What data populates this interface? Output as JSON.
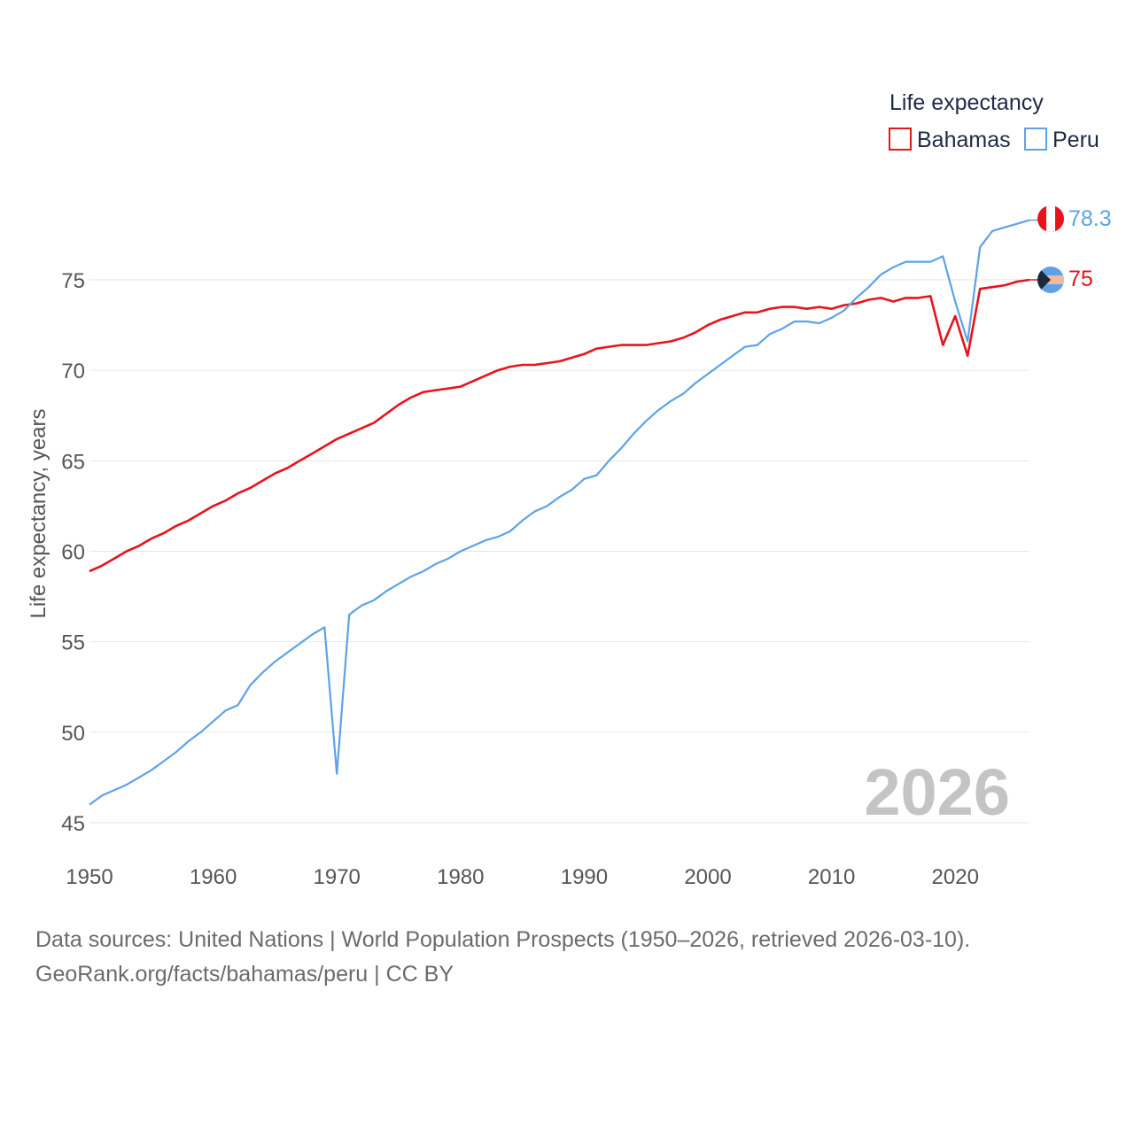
{
  "chart_data": {
    "type": "line",
    "title": "",
    "xlabel": "",
    "ylabel": "Life expectancy, years",
    "legend_title": "Life expectancy",
    "legend_position": "top-right",
    "year_label": "2026",
    "xlim": [
      1950,
      2026
    ],
    "ylim": [
      45,
      80
    ],
    "xticks": [
      1950,
      1960,
      1970,
      1980,
      1990,
      2000,
      2010,
      2020
    ],
    "yticks": [
      45,
      50,
      55,
      60,
      65,
      70,
      75
    ],
    "grid": true,
    "x": [
      1950,
      1951,
      1952,
      1953,
      1954,
      1955,
      1956,
      1957,
      1958,
      1959,
      1960,
      1961,
      1962,
      1963,
      1964,
      1965,
      1966,
      1967,
      1968,
      1969,
      1970,
      1971,
      1972,
      1973,
      1974,
      1975,
      1976,
      1977,
      1978,
      1979,
      1980,
      1981,
      1982,
      1983,
      1984,
      1985,
      1986,
      1987,
      1988,
      1989,
      1990,
      1991,
      1992,
      1993,
      1994,
      1995,
      1996,
      1997,
      1998,
      1999,
      2000,
      2001,
      2002,
      2003,
      2004,
      2005,
      2006,
      2007,
      2008,
      2009,
      2010,
      2011,
      2012,
      2013,
      2014,
      2015,
      2016,
      2017,
      2018,
      2019,
      2020,
      2021,
      2022,
      2023,
      2024,
      2025,
      2026
    ],
    "series": [
      {
        "name": "Bahamas",
        "color": "#e8131b",
        "end_label": "75",
        "values": [
          58.9,
          59.2,
          59.6,
          60.0,
          60.3,
          60.7,
          61.0,
          61.4,
          61.7,
          62.1,
          62.5,
          62.8,
          63.2,
          63.5,
          63.9,
          64.3,
          64.6,
          65.0,
          65.4,
          65.8,
          66.2,
          66.5,
          66.8,
          67.1,
          67.6,
          68.1,
          68.5,
          68.8,
          68.9,
          69.0,
          69.1,
          69.4,
          69.7,
          70.0,
          70.2,
          70.3,
          70.3,
          70.4,
          70.5,
          70.7,
          70.9,
          71.2,
          71.3,
          71.4,
          71.4,
          71.4,
          71.5,
          71.6,
          71.8,
          72.1,
          72.5,
          72.8,
          73.0,
          73.2,
          73.2,
          73.4,
          73.5,
          73.5,
          73.4,
          73.5,
          73.4,
          73.6,
          73.7,
          73.9,
          74.0,
          73.8,
          74.0,
          74.0,
          74.1,
          71.4,
          73.0,
          70.8,
          74.5,
          74.6,
          74.7,
          74.9,
          75.0
        ]
      },
      {
        "name": "Peru",
        "color": "#5da2e8",
        "end_label": "78.3",
        "values": [
          46.0,
          46.5,
          46.8,
          47.1,
          47.5,
          47.9,
          48.4,
          48.9,
          49.5,
          50.0,
          50.6,
          51.2,
          51.5,
          52.6,
          53.3,
          53.9,
          54.4,
          54.9,
          55.4,
          55.8,
          47.7,
          56.5,
          57.0,
          57.3,
          57.8,
          58.2,
          58.6,
          58.9,
          59.3,
          59.6,
          60.0,
          60.3,
          60.6,
          60.8,
          61.1,
          61.7,
          62.2,
          62.5,
          63.0,
          63.4,
          64.0,
          64.2,
          65.0,
          65.7,
          66.5,
          67.2,
          67.8,
          68.3,
          68.7,
          69.3,
          69.8,
          70.3,
          70.8,
          71.3,
          71.4,
          72.0,
          72.3,
          72.7,
          72.7,
          72.6,
          72.9,
          73.3,
          74.0,
          74.6,
          75.3,
          75.7,
          76.0,
          76.0,
          76.0,
          76.3,
          73.8,
          71.6,
          76.8,
          77.7,
          77.9,
          78.1,
          78.3
        ]
      }
    ]
  },
  "footer": {
    "source_line": "Data sources: United Nations | World Population Prospects (1950–2026, retrieved 2026-03-10).",
    "credit_line": "GeoRank.org/facts/bahamas/peru | CC BY"
  },
  "flags": [
    {
      "icon": "peru-flag-icon",
      "colors": [
        "#e8131b",
        "#ffffff"
      ]
    },
    {
      "icon": "bahamas-flag-icon",
      "colors": [
        "#1b2a3a",
        "#5da2e8",
        "#f2b8a0"
      ]
    }
  ]
}
